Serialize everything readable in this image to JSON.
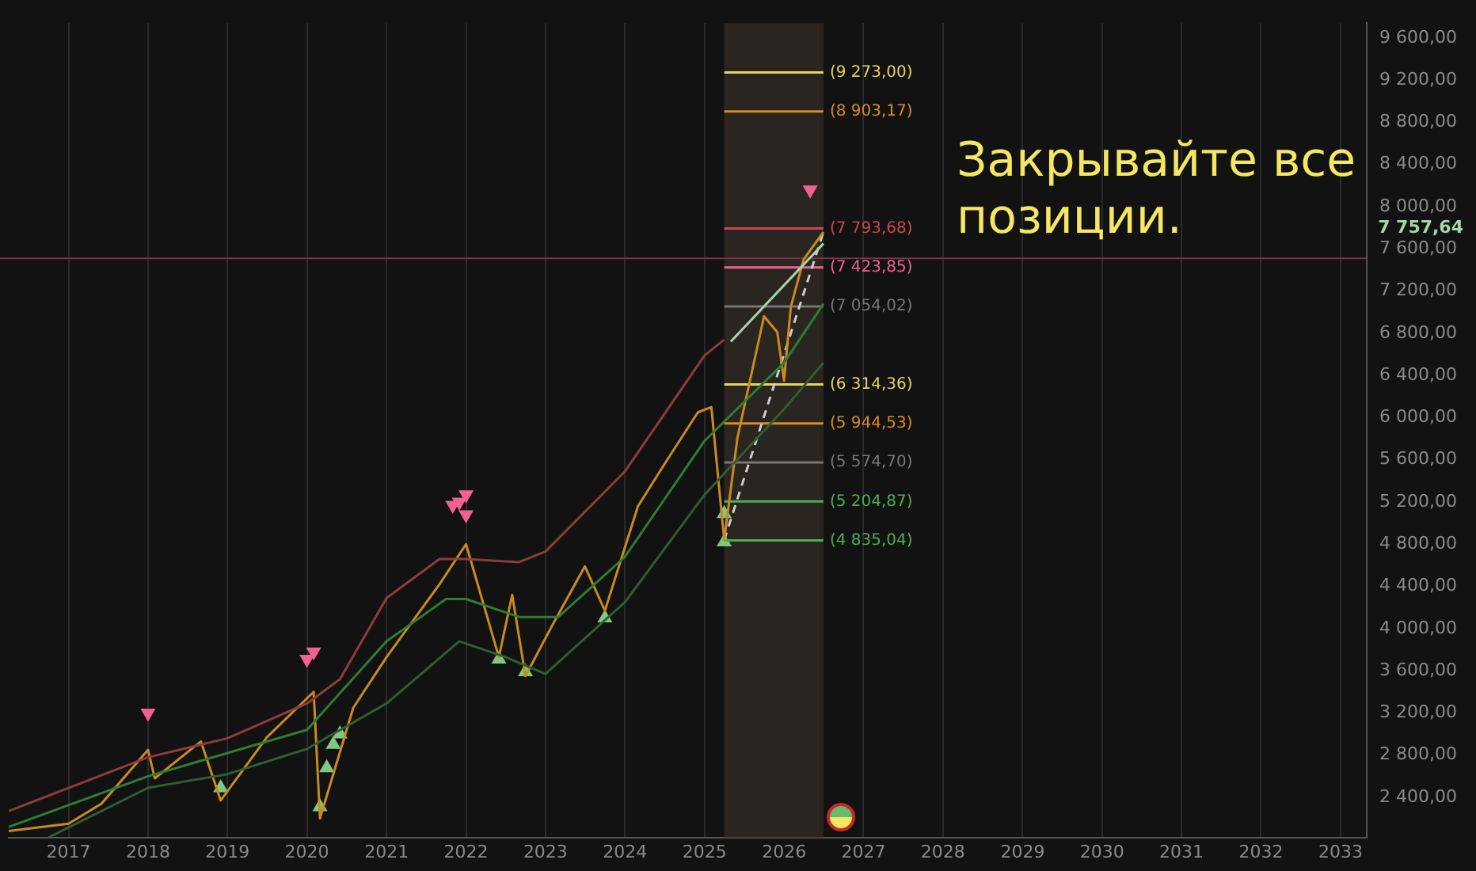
{
  "chart_data": {
    "type": "line",
    "xlim": [
      "2016-04",
      "2033-05"
    ],
    "xticks": [
      "2017",
      "2018",
      "2019",
      "2020",
      "2021",
      "2022",
      "2023",
      "2024",
      "2025",
      "2026",
      "2027",
      "2028",
      "2029",
      "2030",
      "2031",
      "2032",
      "2033"
    ],
    "ylim": [
      2020,
      9740
    ],
    "yticks": [
      {
        "value": 2400,
        "label": "2 400,00"
      },
      {
        "value": 2800,
        "label": "2 800,00"
      },
      {
        "value": 3200,
        "label": "3 200,00"
      },
      {
        "value": 3600,
        "label": "3 600,00"
      },
      {
        "value": 4000,
        "label": "4 000,00"
      },
      {
        "value": 4400,
        "label": "4 400,00"
      },
      {
        "value": 4800,
        "label": "4 800,00"
      },
      {
        "value": 5200,
        "label": "5 200,00"
      },
      {
        "value": 5600,
        "label": "5 600,00"
      },
      {
        "value": 6000,
        "label": "6 000,00"
      },
      {
        "value": 6400,
        "label": "6 400,00"
      },
      {
        "value": 6800,
        "label": "6 800,00"
      },
      {
        "value": 7200,
        "label": "7 200,00"
      },
      {
        "value": 7600,
        "label": "7 600,00"
      },
      {
        "value": 8000,
        "label": "8 000,00"
      },
      {
        "value": 8400,
        "label": "8 400,00"
      },
      {
        "value": 8800,
        "label": "8 800,00"
      },
      {
        "value": 9200,
        "label": "9 200,00"
      },
      {
        "value": 9600,
        "label": "9 600,00"
      }
    ],
    "grid": "x",
    "legend": false,
    "bands": [
      {
        "axis": "x",
        "from": "2025-04",
        "to": "2026-07",
        "color": "#2a2520"
      }
    ],
    "ref_lines": [
      {
        "axis": "y",
        "value": 7510,
        "color": "#7a3347"
      }
    ],
    "annotations": [
      "Закрывайте все позиции.",
      "7 757,64"
    ],
    "series": [
      {
        "color": "#8e3b3b",
        "x": [
          "2016-04",
          "2018-01",
          "2019-01",
          "2020-01",
          "2020-06",
          "2021-01",
          "2021-09",
          "2022-01",
          "2022-09",
          "2023-01",
          "2024-01",
          "2025-01",
          "2025-04"
        ],
        "values": [
          2270,
          2780,
          2960,
          3290,
          3520,
          4290,
          4660,
          4660,
          4630,
          4730,
          5490,
          6590,
          6740
        ]
      },
      {
        "color": "#a5d6a7",
        "x": [
          "2025-05",
          "2026-07"
        ],
        "values": [
          6720,
          7650
        ]
      },
      {
        "color": "#2e7d32",
        "x": [
          "2016-04",
          "2018-01",
          "2019-01",
          "2020-01",
          "2021-01",
          "2021-10",
          "2022-01",
          "2022-09",
          "2023-03",
          "2024-01",
          "2025-01",
          "2026-01",
          "2026-07"
        ],
        "values": [
          2120,
          2600,
          2820,
          3040,
          3880,
          4280,
          4280,
          4110,
          4110,
          4680,
          5780,
          6520,
          7080
        ]
      },
      {
        "color": "#2f5e31",
        "x": [
          "2016-10",
          "2018-01",
          "2019-01",
          "2020-01",
          "2021-01",
          "2021-12",
          "2022-07",
          "2023-01",
          "2024-01",
          "2025-01",
          "2026-01",
          "2026-07"
        ],
        "values": [
          2020,
          2490,
          2620,
          2860,
          3290,
          3880,
          3730,
          3570,
          4250,
          5270,
          6080,
          6520
        ]
      },
      {
        "color": "#c98a1e",
        "x": [
          "2016-04",
          "2017-01",
          "2017-06",
          "2018-01",
          "2018-02",
          "2018-09",
          "2018-12",
          "2019-07",
          "2020-02",
          "2020-03",
          "2020-08",
          "2021-01",
          "2021-09",
          "2022-01",
          "2022-06",
          "2022-08",
          "2022-10",
          "2023-02",
          "2023-07",
          "2023-10",
          "2024-03",
          "2024-07",
          "2024-12",
          "2025-02",
          "2025-04",
          "2025-06",
          "2025-10",
          "2025-12",
          "2026-01",
          "2026-02",
          "2026-04",
          "2026-07"
        ],
        "values": [
          2080,
          2150,
          2340,
          2850,
          2580,
          2930,
          2370,
          2970,
          3400,
          2200,
          3250,
          3730,
          4420,
          4800,
          3730,
          4320,
          3550,
          4030,
          4590,
          4170,
          5160,
          5560,
          6050,
          6100,
          4840,
          5810,
          6960,
          6810,
          6350,
          7050,
          7500,
          7760
        ]
      },
      {
        "color": "#cccccc",
        "line_style": "dashed",
        "x": [
          "2025-04",
          "2026-07"
        ],
        "values": [
          4840,
          7760
        ]
      },
      {
        "name": "(9 273,00)",
        "color": "#e6d55a",
        "x": [
          "2025-04",
          "2026-07"
        ],
        "values": [
          9273,
          9273
        ]
      },
      {
        "name": "(8 903,17)",
        "color": "#d98c1f",
        "x": [
          "2025-04",
          "2026-07"
        ],
        "values": [
          8903.17,
          8903.17
        ]
      },
      {
        "name": "(7 793,68)",
        "color": "#c9474f",
        "x": [
          "2025-04",
          "2026-07"
        ],
        "values": [
          7793.68,
          7793.68
        ]
      },
      {
        "name": "(7 423,85)",
        "color": "#f06292",
        "x": [
          "2025-04",
          "2026-07"
        ],
        "values": [
          7423.85,
          7423.85
        ]
      },
      {
        "name": "(7 054,02)",
        "color": "#777777",
        "x": [
          "2025-04",
          "2026-07"
        ],
        "values": [
          7054.02,
          7054.02
        ]
      },
      {
        "name": "(6 314,36)",
        "color": "#e6d55a",
        "x": [
          "2025-04",
          "2026-07"
        ],
        "values": [
          6314.36,
          6314.36
        ]
      },
      {
        "name": "(5 944,53)",
        "color": "#d98c1f",
        "x": [
          "2025-04",
          "2026-07"
        ],
        "values": [
          5944.53,
          5944.53
        ]
      },
      {
        "name": "(5 574,70)",
        "color": "#777777",
        "x": [
          "2025-04",
          "2026-07"
        ],
        "values": [
          5574.7,
          5574.7
        ]
      },
      {
        "name": "(5 204,87)",
        "color": "#4caf50",
        "x": [
          "2025-04",
          "2026-07"
        ],
        "values": [
          5204.87,
          5204.87
        ]
      },
      {
        "name": "(4 835,04)",
        "color": "#4caf50",
        "x": [
          "2025-04",
          "2026-07"
        ],
        "values": [
          4835.04,
          4835.04
        ]
      },
      {
        "type": "scatter",
        "marker": "triangle-down",
        "color": "#f06292",
        "x": [
          "2018-01",
          "2020-01",
          "2020-02",
          "2021-11",
          "2021-12",
          "2022-01",
          "2022-01",
          "2026-05"
        ],
        "values": [
          3200,
          3710,
          3780,
          5170,
          5200,
          5270,
          5080,
          8160
        ]
      },
      {
        "type": "scatter",
        "marker": "triangle",
        "color": "#81c784",
        "x": [
          "2018-12",
          "2020-03",
          "2020-04",
          "2020-05",
          "2020-06",
          "2022-06",
          "2022-10",
          "2023-10",
          "2025-04",
          "2025-04"
        ],
        "values": [
          2490,
          2310,
          2680,
          2900,
          3000,
          3710,
          3590,
          4100,
          4820,
          5090
        ]
      }
    ]
  }
}
